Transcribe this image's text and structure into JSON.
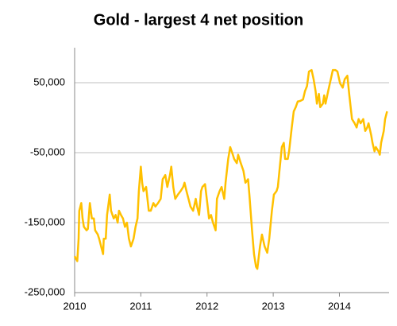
{
  "chart_data": {
    "type": "line",
    "title": "Gold - largest 4 net position",
    "color": "#FFC000",
    "grid": true,
    "xlim": [
      2010,
      2014.75
    ],
    "xticks": [
      2010,
      2011,
      2012,
      2013,
      2014
    ],
    "ylim": [
      -250000,
      100000
    ],
    "yticks": [
      {
        "value": 50000,
        "label": "50,000"
      },
      {
        "value": -50000,
        "label": "-50,000"
      },
      {
        "value": -150000,
        "label": "-150,000"
      },
      {
        "value": -250000,
        "label": "-250,000"
      }
    ],
    "x": [
      2010.0,
      2010.04,
      2010.06,
      2010.07,
      2010.1,
      2010.12,
      2010.14,
      2010.18,
      2010.2,
      2010.23,
      2010.26,
      2010.29,
      2010.31,
      2010.35,
      2010.37,
      2010.4,
      2010.43,
      2010.44,
      2010.47,
      2010.49,
      2010.53,
      2010.55,
      2010.59,
      2010.62,
      2010.65,
      2010.67,
      2010.7,
      2010.73,
      2010.76,
      2010.79,
      2010.82,
      2010.85,
      2010.89,
      2010.92,
      2010.95,
      2010.97,
      2011.0,
      2011.02,
      2011.04,
      2011.08,
      2011.12,
      2011.15,
      2011.19,
      2011.22,
      2011.26,
      2011.3,
      2011.33,
      2011.37,
      2011.4,
      2011.44,
      2011.46,
      2011.49,
      2011.52,
      2011.56,
      2011.6,
      2011.64,
      2011.66,
      2011.69,
      2011.72,
      2011.75,
      2011.79,
      2011.83,
      2011.85,
      2011.88,
      2011.91,
      2011.93,
      2011.97,
      2012.01,
      2012.03,
      2012.06,
      2012.09,
      2012.13,
      2012.15,
      2012.19,
      2012.22,
      2012.26,
      2012.28,
      2012.32,
      2012.35,
      2012.39,
      2012.41,
      2012.45,
      2012.47,
      2012.51,
      2012.55,
      2012.58,
      2012.62,
      2012.64,
      2012.68,
      2012.71,
      2012.74,
      2012.76,
      2012.8,
      2012.83,
      2012.87,
      2012.91,
      2012.94,
      2012.98,
      2013.01,
      2013.05,
      2013.07,
      2013.1,
      2013.13,
      2013.16,
      2013.18,
      2013.22,
      2013.24,
      2013.28,
      2013.31,
      2013.34,
      2013.37,
      2013.41,
      2013.45,
      2013.48,
      2013.51,
      2013.54,
      2013.58,
      2013.61,
      2013.64,
      2013.66,
      2013.69,
      2013.71,
      2013.75,
      2013.77,
      2013.79,
      2013.83,
      2013.87,
      2013.9,
      2013.94,
      2013.97,
      2014.01,
      2014.05,
      2014.08,
      2014.12,
      2014.15,
      2014.19,
      2014.23,
      2014.26,
      2014.29,
      2014.32,
      2014.36,
      2014.39,
      2014.42,
      2014.44,
      2014.48,
      2014.5,
      2014.53,
      2014.55,
      2014.59,
      2014.61,
      2014.63,
      2014.67,
      2014.69,
      2014.72
    ],
    "values": [
      -198000,
      -205000,
      -173000,
      -133000,
      -122000,
      -144000,
      -156000,
      -161000,
      -159000,
      -122000,
      -144000,
      -144000,
      -161000,
      -167000,
      -173000,
      -184000,
      -195000,
      -173000,
      -173000,
      -139000,
      -110000,
      -133000,
      -144000,
      -139000,
      -150000,
      -133000,
      -139000,
      -144000,
      -156000,
      -150000,
      -173000,
      -184000,
      -173000,
      -156000,
      -144000,
      -105000,
      -70000,
      -93000,
      -105000,
      -99000,
      -133000,
      -133000,
      -122000,
      -127000,
      -122000,
      -116000,
      -88000,
      -82000,
      -99000,
      -82000,
      -70000,
      -99000,
      -116000,
      -110000,
      -105000,
      -99000,
      -93000,
      -105000,
      -116000,
      -127000,
      -133000,
      -116000,
      -127000,
      -139000,
      -105000,
      -99000,
      -95000,
      -127000,
      -144000,
      -139000,
      -150000,
      -161000,
      -116000,
      -105000,
      -99000,
      -116000,
      -93000,
      -59000,
      -42000,
      -53000,
      -59000,
      -65000,
      -53000,
      -65000,
      -76000,
      -93000,
      -88000,
      -110000,
      -161000,
      -195000,
      -213000,
      -216000,
      -184000,
      -167000,
      -184000,
      -193000,
      -173000,
      -133000,
      -110000,
      -105000,
      -99000,
      -70000,
      -42000,
      -36000,
      -59000,
      -59000,
      -48000,
      -14000,
      9000,
      15000,
      23000,
      24000,
      26000,
      38000,
      45000,
      66000,
      68000,
      55000,
      38000,
      20000,
      34000,
      15000,
      20000,
      32000,
      20000,
      38000,
      55000,
      68000,
      68000,
      66000,
      49000,
      43000,
      55000,
      60000,
      32000,
      -2000,
      -8000,
      -14000,
      -2000,
      -8000,
      -2000,
      -19000,
      -14000,
      -8000,
      -25000,
      -36000,
      -48000,
      -42000,
      -48000,
      -53000,
      -36000,
      -19000,
      -2000,
      9000
    ]
  }
}
